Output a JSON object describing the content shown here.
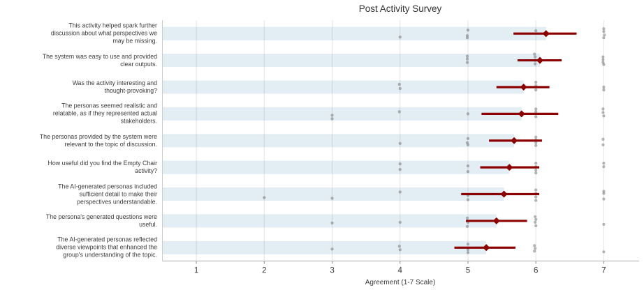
{
  "chart_data": {
    "type": "bar",
    "title": "Post Activity Survey",
    "xlabel": "Agreement (1-7 Scale)",
    "xlim": [
      0.5,
      7.5
    ],
    "xticks": [
      1,
      2,
      3,
      4,
      5,
      6,
      7
    ],
    "grid": true,
    "legend": "none",
    "bar_color": "#e3edf4",
    "ci_color": "#8b0000",
    "marker_color": "#8b0000",
    "strip_color": "#828282",
    "gridline_color": "#dcdcdc",
    "rows": [
      {
        "label": "This activity helped spark further\ndiscussion about what perspectives we\nmay be missing.",
        "mean": 6.15,
        "ci": [
          5.67,
          6.6
        ],
        "responses": [
          [
            4,
            0,
            5
          ],
          [
            5,
            0,
            -5
          ],
          [
            5,
            -1,
            3
          ],
          [
            5,
            -1,
            6
          ],
          [
            6,
            0,
            -4
          ],
          [
            7,
            0,
            -7
          ],
          [
            7,
            0,
            -3
          ],
          [
            7,
            1,
            2
          ],
          [
            7,
            0,
            6
          ]
        ]
      },
      {
        "label": "The system was easy to use and provided\nclear outputs.",
        "mean": 6.06,
        "ci": [
          5.73,
          6.38
        ],
        "responses": [
          [
            5,
            -1,
            -6
          ],
          [
            5,
            -1,
            -2
          ],
          [
            5,
            -1,
            3
          ],
          [
            6,
            -2,
            -9
          ],
          [
            6,
            -1,
            -5
          ],
          [
            6,
            -1,
            0
          ],
          [
            6,
            -1,
            5
          ],
          [
            7,
            -1,
            -5
          ],
          [
            7,
            -1,
            -1
          ],
          [
            7,
            -1,
            3
          ],
          [
            7,
            0,
            6
          ]
        ]
      },
      {
        "label": "Was the activity interesting and\nthought-provoking?",
        "mean": 5.82,
        "ci": [
          5.42,
          6.2
        ],
        "responses": [
          [
            4,
            -1,
            -4
          ],
          [
            4,
            0,
            2
          ],
          [
            6,
            0,
            -7
          ],
          [
            6,
            0,
            -2
          ],
          [
            6,
            0,
            4
          ],
          [
            7,
            0,
            0
          ],
          [
            7,
            0,
            4
          ]
        ]
      },
      {
        "label": "The personas seemed realistic and\nrelatable, as if they represented actual\nstakeholders.",
        "mean": 5.79,
        "ci": [
          5.2,
          6.33
        ],
        "responses": [
          [
            3,
            0,
            2
          ],
          [
            3,
            0,
            7
          ],
          [
            4,
            -1,
            -3
          ],
          [
            5,
            0,
            0
          ],
          [
            6,
            0,
            -7
          ],
          [
            6,
            0,
            -3
          ],
          [
            6,
            0,
            4
          ],
          [
            7,
            -1,
            -7
          ],
          [
            7,
            -1,
            -2
          ],
          [
            7,
            0,
            3
          ]
        ]
      },
      {
        "label": "The personas provided by the system were\nrelevant to the topic of discussion.",
        "mean": 5.68,
        "ci": [
          5.31,
          6.09
        ],
        "responses": [
          [
            4,
            0,
            4
          ],
          [
            5,
            0,
            -3
          ],
          [
            5,
            -1,
            3
          ],
          [
            5,
            0,
            6
          ],
          [
            6,
            0,
            -5
          ],
          [
            6,
            0,
            -1
          ],
          [
            6,
            0,
            3
          ],
          [
            6,
            0,
            7
          ],
          [
            7,
            -1,
            -2
          ],
          [
            7,
            -1,
            6
          ]
        ]
      },
      {
        "label": "How useful did you find the Empty Chair\nactivity?",
        "mean": 5.61,
        "ci": [
          5.18,
          6.05
        ],
        "responses": [
          [
            4,
            0,
            -5
          ],
          [
            4,
            0,
            3
          ],
          [
            5,
            0,
            -2
          ],
          [
            5,
            0,
            6
          ],
          [
            6,
            0,
            -6
          ],
          [
            6,
            0,
            -1
          ],
          [
            6,
            0,
            4
          ],
          [
            6,
            0,
            8
          ],
          [
            7,
            0,
            -6
          ],
          [
            7,
            0,
            -1
          ]
        ]
      },
      {
        "label": "The AI-generated personas included\nsufficient detail to make their\nperspectives understandable.",
        "mean": 5.53,
        "ci": [
          4.9,
          6.05
        ],
        "responses": [
          [
            2,
            0,
            5
          ],
          [
            3,
            0,
            6
          ],
          [
            4,
            0,
            -3
          ],
          [
            5,
            0,
            2
          ],
          [
            5,
            0,
            8
          ],
          [
            6,
            0,
            -6
          ],
          [
            6,
            0,
            -1
          ],
          [
            6,
            0,
            4
          ],
          [
            6,
            0,
            9
          ],
          [
            7,
            0,
            -4
          ],
          [
            7,
            0,
            -1
          ],
          [
            7,
            0,
            7
          ]
        ]
      },
      {
        "label": "The persona's generated questions were\nuseful.",
        "mean": 5.42,
        "ci": [
          4.97,
          5.87
        ],
        "responses": [
          [
            3,
            0,
            3
          ],
          [
            4,
            0,
            2
          ],
          [
            5,
            -1,
            -4
          ],
          [
            5,
            0,
            2
          ],
          [
            5,
            -1,
            8
          ],
          [
            6,
            -1,
            -6
          ],
          [
            6,
            0,
            -2
          ],
          [
            6,
            -1,
            2
          ],
          [
            6,
            0,
            7
          ],
          [
            7,
            0,
            5
          ]
        ]
      },
      {
        "label": "The AI-generated personas reflected\ndiverse viewpoints that enhanced the\ngroup's understanding of the topic.",
        "mean": 5.27,
        "ci": [
          4.8,
          5.7
        ],
        "responses": [
          [
            3,
            0,
            2
          ],
          [
            4,
            -1,
            -2
          ],
          [
            4,
            0,
            3
          ],
          [
            5,
            0,
            -5
          ],
          [
            5,
            0,
            3
          ],
          [
            5,
            0,
            7
          ],
          [
            6,
            -2,
            -3
          ],
          [
            6,
            -1,
            1
          ],
          [
            6,
            -2,
            5
          ],
          [
            7,
            0,
            6
          ]
        ]
      }
    ]
  }
}
